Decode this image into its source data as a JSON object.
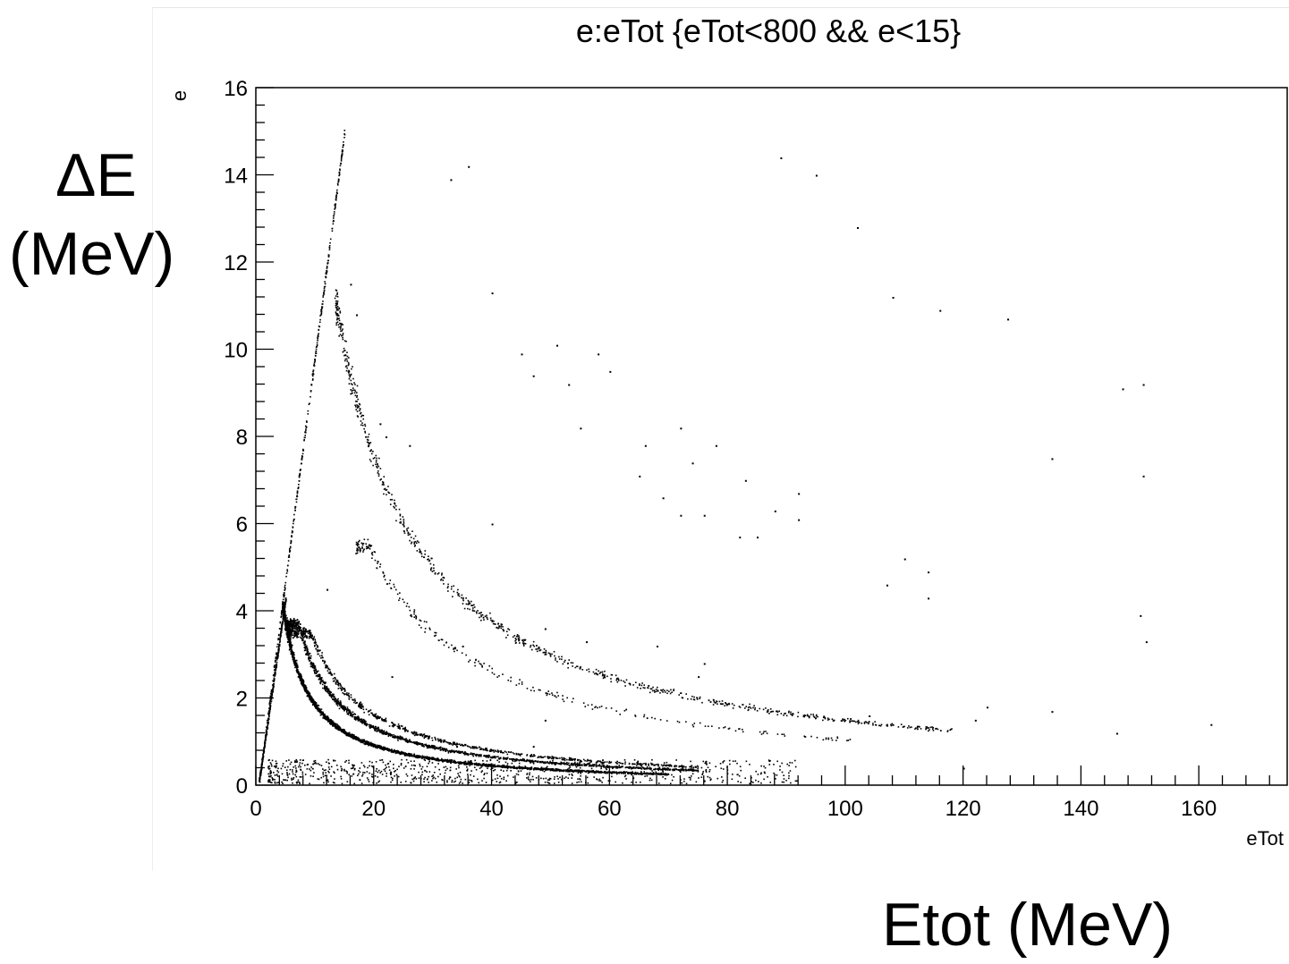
{
  "annotations": {
    "y_label_line1": "ΔE",
    "y_label_line2": "(MeV)",
    "x_label": "Etot (MeV)"
  },
  "chart_data": {
    "type": "scatter",
    "title": "e:eTot {eTot<800 && e<15}",
    "xlabel": "eTot",
    "ylabel": "e",
    "xlim": [
      0,
      175
    ],
    "ylim": [
      0,
      16
    ],
    "x_ticks": [
      0,
      20,
      40,
      60,
      80,
      100,
      120,
      140,
      160
    ],
    "y_ticks": [
      0,
      2,
      4,
      6,
      8,
      10,
      12,
      14,
      16
    ],
    "grid": false,
    "legend": "none",
    "marker_color": "#000000",
    "bands": [
      {
        "kind": "punch-through line",
        "x": [
          0.5,
          15
        ],
        "y": [
          0.1,
          15
        ],
        "density": "medium"
      },
      {
        "kind": "punch-through line",
        "x": [
          0.5,
          5
        ],
        "y": [
          0.1,
          4.3
        ],
        "density": "medium"
      },
      {
        "kind": "hyperbola",
        "x_range": [
          4.5,
          70
        ],
        "k": 18.5,
        "ymax": 4.2,
        "density": "very high"
      },
      {
        "kind": "hyperbola",
        "x_range": [
          5.0,
          75
        ],
        "k": 26.5,
        "ymax": 3.7,
        "density": "high"
      },
      {
        "kind": "hyperbola",
        "x_range": [
          5.5,
          75
        ],
        "k": 32.5,
        "ymax": 3.5,
        "density": "medium"
      },
      {
        "kind": "hyperbola",
        "x_range": [
          13.5,
          118
        ],
        "k": 150,
        "ymax": 11,
        "density": "medium"
      },
      {
        "kind": "hyperbola",
        "x_range": [
          17,
          102
        ],
        "k": 105,
        "ymax": 5.5,
        "density": "low"
      },
      {
        "kind": "low-energy floor",
        "x_range": [
          2,
          92
        ],
        "y_range": [
          0.05,
          0.6
        ],
        "density": "medium"
      }
    ],
    "sparse_points": [
      [
        33,
        13.9
      ],
      [
        36,
        14.2
      ],
      [
        89,
        14.4
      ],
      [
        95,
        14.0
      ],
      [
        102,
        12.8
      ],
      [
        16,
        11.5
      ],
      [
        17,
        10.8
      ],
      [
        40,
        11.3
      ],
      [
        108,
        11.2
      ],
      [
        116,
        10.9
      ],
      [
        127.5,
        10.7
      ],
      [
        45,
        9.9
      ],
      [
        47,
        9.4
      ],
      [
        51,
        10.1
      ],
      [
        53,
        9.2
      ],
      [
        58,
        9.9
      ],
      [
        60,
        9.5
      ],
      [
        147,
        9.1
      ],
      [
        150.5,
        9.2
      ],
      [
        21,
        8.3
      ],
      [
        22,
        8.0
      ],
      [
        26,
        7.8
      ],
      [
        55,
        8.2
      ],
      [
        66,
        7.8
      ],
      [
        72,
        8.2
      ],
      [
        74,
        7.4
      ],
      [
        78,
        7.8
      ],
      [
        83,
        7.0
      ],
      [
        135,
        7.5
      ],
      [
        150.5,
        7.1
      ],
      [
        65,
        7.1
      ],
      [
        69,
        6.6
      ],
      [
        72,
        6.2
      ],
      [
        76,
        6.2
      ],
      [
        88,
        6.3
      ],
      [
        92,
        6.7
      ],
      [
        92,
        6.1
      ],
      [
        40,
        6.0
      ],
      [
        82,
        5.7
      ],
      [
        85,
        5.7
      ],
      [
        110,
        5.2
      ],
      [
        114,
        4.9
      ],
      [
        107,
        4.6
      ],
      [
        114,
        4.3
      ],
      [
        12,
        4.5
      ],
      [
        150,
        3.9
      ],
      [
        151,
        3.3
      ],
      [
        23,
        2.5
      ],
      [
        35,
        3.2
      ],
      [
        49,
        3.6
      ],
      [
        56,
        3.3
      ],
      [
        68,
        3.2
      ],
      [
        75,
        2.5
      ],
      [
        76,
        2.8
      ],
      [
        135,
        1.7
      ],
      [
        162,
        1.4
      ],
      [
        146,
        1.2
      ],
      [
        124,
        1.8
      ],
      [
        122,
        1.5
      ],
      [
        108,
        1.4
      ],
      [
        104,
        1.6
      ],
      [
        49,
        1.5
      ],
      [
        47,
        0.9
      ],
      [
        34,
        0.9
      ],
      [
        120,
        0.4
      ]
    ]
  }
}
